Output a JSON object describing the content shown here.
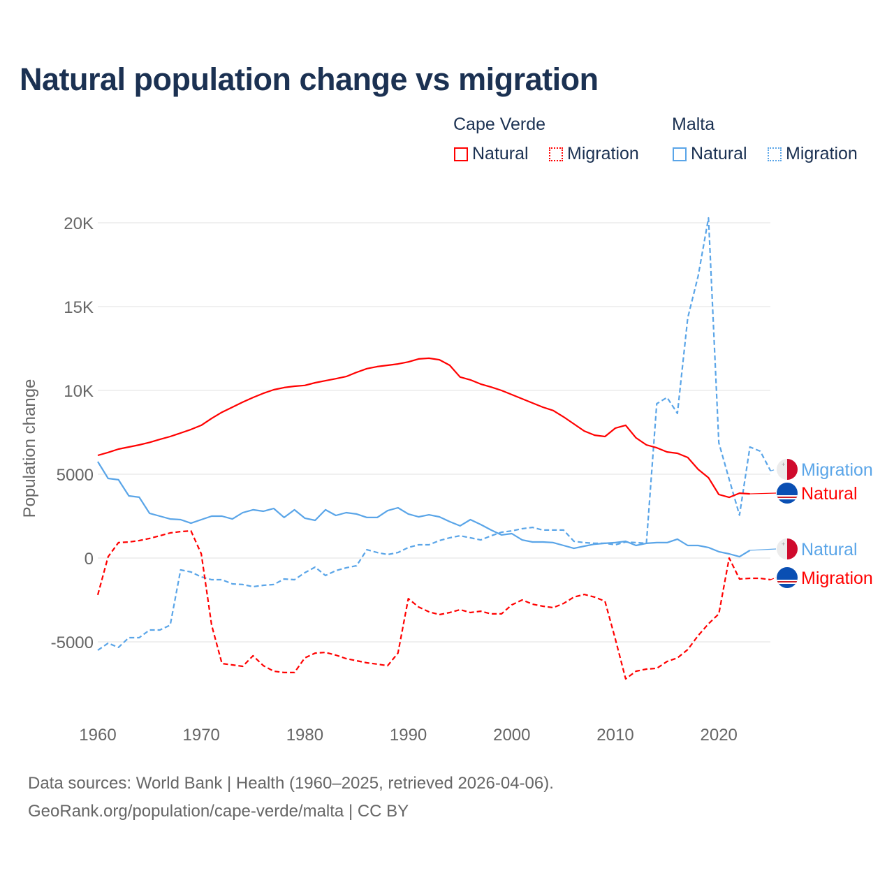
{
  "title": "Natural population change vs migration",
  "legend": {
    "groups": [
      {
        "name": "Cape Verde",
        "items": [
          {
            "label": "Natural",
            "style": "solid",
            "color": "#ff0000"
          },
          {
            "label": "Migration",
            "style": "dotted",
            "color": "#ff0000"
          }
        ]
      },
      {
        "name": "Malta",
        "items": [
          {
            "label": "Natural",
            "style": "solid",
            "color": "#5aa5e8"
          },
          {
            "label": "Migration",
            "style": "dotted",
            "color": "#5aa5e8"
          }
        ]
      }
    ]
  },
  "footer": {
    "line1": "Data sources: World Bank | Health (1960–2025, retrieved 2026-04-06).",
    "line2": "GeoRank.org/population/cape-verde/malta | CC BY"
  },
  "chart_data": {
    "type": "line",
    "title": "Natural population change vs migration",
    "xlabel": "",
    "ylabel": "Population change",
    "xlim": [
      1960,
      2025
    ],
    "ylim": [
      -7500,
      20500
    ],
    "grid": true,
    "x_ticks": [
      1960,
      1970,
      1980,
      1990,
      2000,
      2010,
      2020
    ],
    "x_tick_labels": [
      "1960",
      "1970",
      "1980",
      "1990",
      "2000",
      "2010",
      "2020"
    ],
    "y_ticks": [
      -5000,
      0,
      5000,
      10000,
      15000,
      20000
    ],
    "y_tick_labels": [
      "-5000",
      "0",
      "5000",
      "10K",
      "15K",
      "20K"
    ],
    "legend_position": "top-right",
    "series": [
      {
        "name": "Malta Migration",
        "country": "Malta",
        "label": "Migration",
        "color": "#5aa5e8",
        "dashed": true,
        "start": 1960,
        "values": [
          -5500,
          -5080,
          -5330,
          -4750,
          -4750,
          -4290,
          -4290,
          -4000,
          -710,
          -830,
          -1125,
          -1290,
          -1290,
          -1540,
          -1580,
          -1710,
          -1625,
          -1580,
          -1250,
          -1290,
          -875,
          -540,
          -1040,
          -750,
          -580,
          -460,
          500,
          330,
          210,
          330,
          630,
          790,
          790,
          1040,
          1210,
          1330,
          1210,
          1080,
          1330,
          1540,
          1620,
          1750,
          1830,
          1670,
          1670,
          1670,
          1000,
          920,
          880,
          880,
          790,
          960,
          920,
          880,
          9210,
          9580,
          8630,
          14330,
          16830,
          20290,
          6875,
          4700,
          2560,
          6625,
          6375,
          5200
        ]
      },
      {
        "name": "Cape Verde Natural",
        "country": "Cape Verde",
        "label": "Natural",
        "color": "#ff0000",
        "dashed": false,
        "start": 1960,
        "values": [
          6125,
          6300,
          6500,
          6625,
          6750,
          6900,
          7080,
          7250,
          7460,
          7670,
          7920,
          8330,
          8700,
          9000,
          9300,
          9580,
          9830,
          10040,
          10170,
          10250,
          10300,
          10460,
          10580,
          10700,
          10830,
          11080,
          11300,
          11420,
          11500,
          11580,
          11700,
          11880,
          11920,
          11830,
          11500,
          10800,
          10630,
          10380,
          10200,
          10000,
          9750,
          9500,
          9250,
          9000,
          8800,
          8420,
          8000,
          7580,
          7330,
          7250,
          7750,
          7920,
          7170,
          6750,
          6580,
          6330,
          6250,
          6000,
          5290,
          4790,
          3790,
          3620,
          3870,
          3830
        ]
      },
      {
        "name": "Malta Natural",
        "country": "Malta",
        "label": "Natural",
        "color": "#5aa5e8",
        "dashed": false,
        "start": 1960,
        "values": [
          5750,
          4750,
          4670,
          3710,
          3630,
          2670,
          2500,
          2330,
          2290,
          2080,
          2290,
          2500,
          2500,
          2330,
          2710,
          2880,
          2790,
          2960,
          2420,
          2880,
          2380,
          2250,
          2880,
          2540,
          2710,
          2630,
          2420,
          2420,
          2830,
          3000,
          2630,
          2460,
          2580,
          2460,
          2170,
          1920,
          2290,
          2000,
          1670,
          1380,
          1460,
          1080,
          960,
          960,
          920,
          750,
          580,
          710,
          830,
          880,
          920,
          1000,
          750,
          880,
          920,
          920,
          1130,
          750,
          750,
          630,
          380,
          250,
          80,
          460
        ]
      },
      {
        "name": "Cape Verde Migration",
        "country": "Cape Verde",
        "label": "Migration",
        "color": "#ff0000",
        "dashed": true,
        "start": 1960,
        "values": [
          -2200,
          80,
          920,
          960,
          1040,
          1170,
          1330,
          1500,
          1580,
          1620,
          250,
          -4000,
          -6290,
          -6375,
          -6460,
          -5830,
          -6420,
          -6750,
          -6830,
          -6830,
          -5960,
          -5670,
          -5630,
          -5790,
          -6000,
          -6125,
          -6250,
          -6330,
          -6420,
          -5670,
          -2420,
          -2920,
          -3210,
          -3375,
          -3250,
          -3080,
          -3250,
          -3170,
          -3330,
          -3330,
          -2790,
          -2500,
          -2750,
          -2875,
          -2960,
          -2710,
          -2330,
          -2170,
          -2330,
          -2580,
          -4830,
          -7210,
          -6750,
          -6625,
          -6580,
          -6170,
          -5960,
          -5460,
          -4625,
          -3920,
          -3330,
          0,
          -1250,
          -1210,
          -1210,
          -1290
        ]
      }
    ]
  }
}
